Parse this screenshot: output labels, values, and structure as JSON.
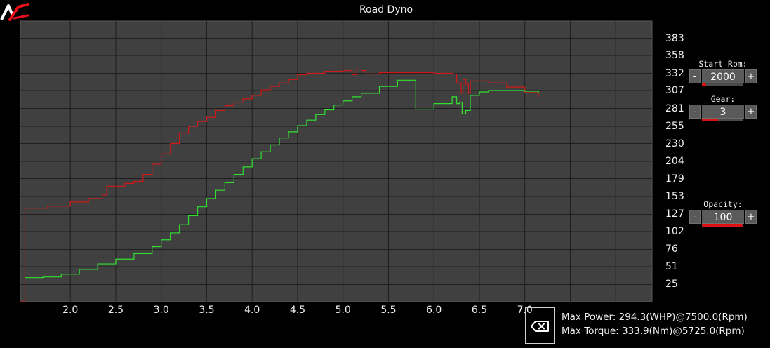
{
  "app": {
    "title": "Road Dyno"
  },
  "controls": {
    "start_rpm": {
      "label": "Start Rpm:",
      "value": "2000",
      "minus": "-",
      "plus": "+",
      "level": 0.1
    },
    "gear": {
      "label": "Gear:",
      "value": "3",
      "minus": "-",
      "plus": "+",
      "level": 0.4
    },
    "opacity": {
      "label": "Opacity:",
      "value": "100",
      "minus": "-",
      "plus": "+",
      "level": 1.0
    }
  },
  "stats": {
    "max_power": "Max Power: 294.3(WHP)@7500.0(Rpm)",
    "max_torque": "Max Torque: 333.9(Nm)@5725.0(Rpm)"
  },
  "icons": {
    "logo": "ac-logo-icon",
    "reset": "clear-backspace-icon"
  },
  "colors": {
    "torque": "#d01818",
    "power": "#2fe02f",
    "plot_bg": "#404040",
    "grid": "#1e1e1e",
    "accent": "#e21010"
  },
  "chart_data": {
    "type": "line",
    "x_tick_labels": [
      "2.0",
      "2.5",
      "3.0",
      "3.5",
      "4.0",
      "4.5",
      "5.0",
      "5.5",
      "6.0",
      "6.5",
      "7.0"
    ],
    "y_tick_labels": [
      "383",
      "358",
      "332",
      "307",
      "281",
      "255",
      "230",
      "204",
      "179",
      "153",
      "127",
      "102",
      "76",
      "51",
      "25"
    ],
    "xlim": [
      1.45,
      8.4
    ],
    "ylim": [
      0,
      408
    ],
    "grid": true,
    "series": [
      {
        "color": "#d01818",
        "x": [
          1.45,
          1.5,
          1.75,
          2.0,
          2.2,
          2.35,
          2.4,
          2.6,
          2.7,
          2.8,
          2.9,
          3.0,
          3.1,
          3.2,
          3.3,
          3.4,
          3.5,
          3.6,
          3.7,
          3.8,
          3.9,
          4.0,
          4.1,
          4.2,
          4.3,
          4.4,
          4.5,
          4.6,
          4.8,
          5.0,
          5.1,
          5.15,
          5.2,
          5.25,
          5.4,
          5.6,
          5.8,
          6.0,
          6.2,
          6.25,
          6.3,
          6.32,
          6.35,
          6.38,
          6.4,
          6.5,
          6.6,
          6.8,
          7.0,
          7.15
        ],
        "y": [
          0,
          136,
          139,
          145,
          150,
          155,
          168,
          172,
          175,
          185,
          200,
          215,
          230,
          245,
          255,
          262,
          268,
          278,
          285,
          290,
          295,
          300,
          308,
          313,
          318,
          323,
          330,
          332,
          335,
          336,
          330,
          338,
          336,
          331,
          333,
          333,
          333,
          332,
          331,
          318,
          303,
          323,
          316,
          303,
          321,
          321,
          318,
          312,
          304,
          298
        ]
      },
      {
        "color": "#2fe02f",
        "x": [
          1.5,
          1.7,
          1.9,
          2.1,
          2.3,
          2.5,
          2.7,
          2.9,
          3.0,
          3.1,
          3.2,
          3.3,
          3.4,
          3.5,
          3.6,
          3.7,
          3.8,
          3.9,
          4.0,
          4.1,
          4.2,
          4.3,
          4.4,
          4.5,
          4.6,
          4.7,
          4.8,
          4.9,
          5.0,
          5.1,
          5.2,
          5.4,
          5.6,
          5.8,
          6.0,
          6.2,
          6.25,
          6.28,
          6.31,
          6.35,
          6.4,
          6.5,
          6.6,
          6.8,
          7.0,
          7.15
        ],
        "y": [
          35,
          36,
          40,
          47,
          55,
          62,
          70,
          80,
          90,
          100,
          112,
          125,
          138,
          150,
          162,
          173,
          185,
          196,
          208,
          218,
          228,
          238,
          247,
          256,
          264,
          272,
          279,
          286,
          292,
          298,
          303,
          313,
          322,
          280,
          288,
          298,
          288,
          290,
          273,
          278,
          300,
          305,
          307,
          307,
          306,
          304
        ]
      }
    ]
  }
}
